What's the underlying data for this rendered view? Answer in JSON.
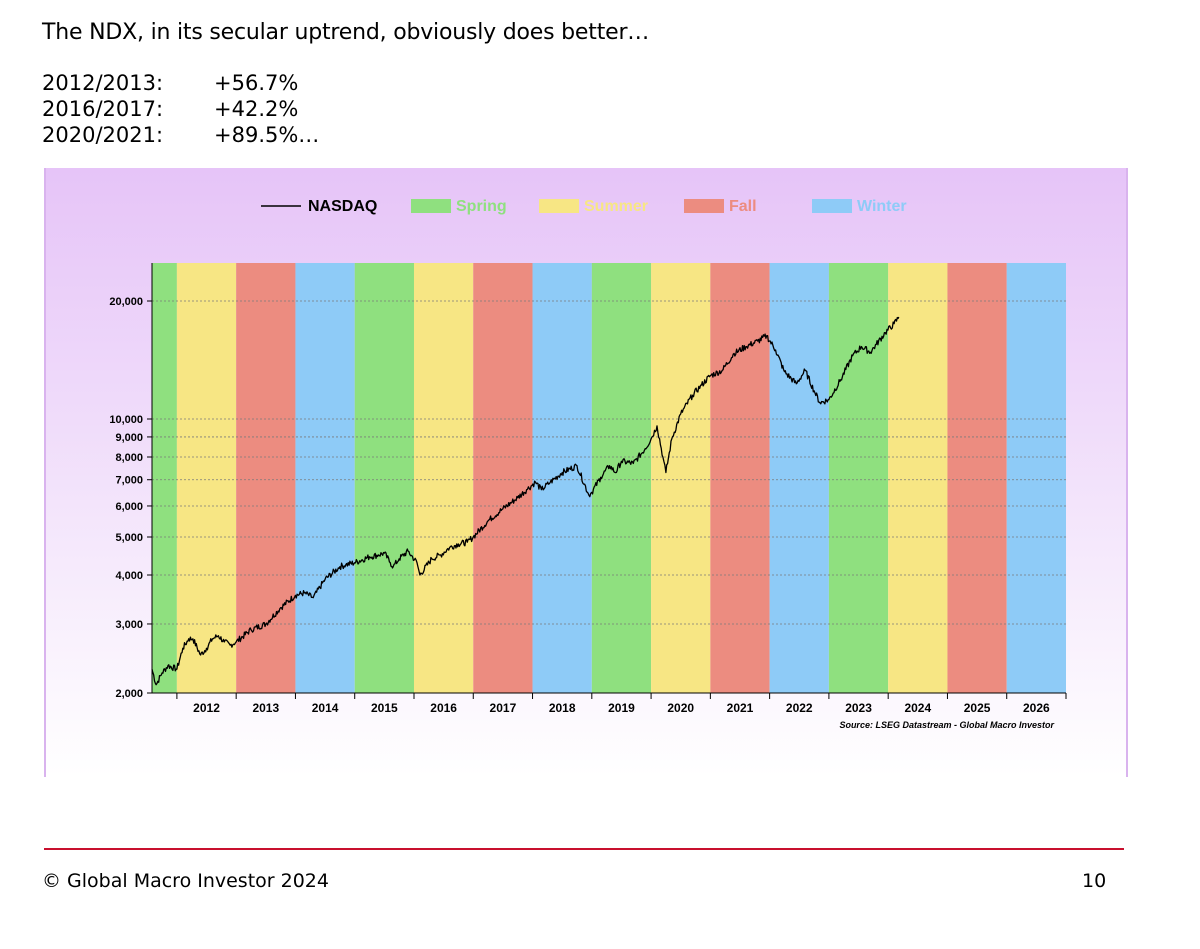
{
  "slide": {
    "headline": "The NDX, in its secular uptrend, obviously does better…",
    "stats": [
      {
        "period": "2012/2013:",
        "value": "+56.7%"
      },
      {
        "period": "2016/2017:",
        "value": "+42.2%"
      },
      {
        "period": "2020/2021:",
        "value": "+89.5%…"
      }
    ],
    "copyright": "© Global Macro Investor 2024",
    "page_number": "10",
    "colors": {
      "accent_rule": "#c8102e",
      "panel_top": "#e6c4f8"
    }
  },
  "chart_data": {
    "type": "line",
    "title": "",
    "xlabel": "",
    "ylabel": "",
    "y_scale": "log",
    "ylim": [
      2000,
      25000
    ],
    "xlim": [
      2011.58,
      2027.0
    ],
    "y_ticks": [
      2000,
      3000,
      4000,
      5000,
      6000,
      7000,
      8000,
      9000,
      10000,
      20000
    ],
    "y_tick_labels": [
      "2,000",
      "3,000",
      "4,000",
      "5,000",
      "6,000",
      "7,000",
      "8,000",
      "9,000",
      "10,000",
      "20,000"
    ],
    "x_tick_labels": [
      "2012",
      "2013",
      "2014",
      "2015",
      "2016",
      "2017",
      "2018",
      "2019",
      "2020",
      "2021",
      "2022",
      "2023",
      "2024",
      "2025",
      "2026"
    ],
    "grid": "horizontal dotted",
    "legend_position": "top-center",
    "legend": [
      {
        "label": "NASDAQ",
        "kind": "line",
        "color": "#000000"
      },
      {
        "label": "Spring",
        "kind": "box",
        "color": "#8fe07f"
      },
      {
        "label": "Summer",
        "kind": "box",
        "color": "#f7e684"
      },
      {
        "label": "Fall",
        "kind": "box",
        "color": "#ec8c80"
      },
      {
        "label": "Winter",
        "kind": "box",
        "color": "#8ecbf7"
      }
    ],
    "season_colors": {
      "Spring": "#8fe07f",
      "Summer": "#f7e684",
      "Fall": "#ec8c80",
      "Winter": "#8ecbf7"
    },
    "season_bands": [
      {
        "start": 2011.58,
        "end": 2012.0,
        "season": "Spring"
      },
      {
        "start": 2012.0,
        "end": 2013.0,
        "season": "Summer"
      },
      {
        "start": 2013.0,
        "end": 2014.0,
        "season": "Fall"
      },
      {
        "start": 2014.0,
        "end": 2015.0,
        "season": "Winter"
      },
      {
        "start": 2015.0,
        "end": 2016.0,
        "season": "Spring"
      },
      {
        "start": 2016.0,
        "end": 2017.0,
        "season": "Summer"
      },
      {
        "start": 2017.0,
        "end": 2018.0,
        "season": "Fall"
      },
      {
        "start": 2018.0,
        "end": 2019.0,
        "season": "Winter"
      },
      {
        "start": 2019.0,
        "end": 2020.0,
        "season": "Spring"
      },
      {
        "start": 2020.0,
        "end": 2021.0,
        "season": "Summer"
      },
      {
        "start": 2021.0,
        "end": 2022.0,
        "season": "Fall"
      },
      {
        "start": 2022.0,
        "end": 2023.0,
        "season": "Winter"
      },
      {
        "start": 2023.0,
        "end": 2024.0,
        "season": "Spring"
      },
      {
        "start": 2024.0,
        "end": 2025.0,
        "season": "Summer"
      },
      {
        "start": 2025.0,
        "end": 2026.0,
        "season": "Fall"
      },
      {
        "start": 2026.0,
        "end": 2027.0,
        "season": "Winter"
      }
    ],
    "series": [
      {
        "name": "NASDAQ",
        "color": "#000000",
        "x": [
          2011.58,
          2011.65,
          2011.75,
          2011.85,
          2012.0,
          2012.1,
          2012.2,
          2012.27,
          2012.4,
          2012.5,
          2012.6,
          2012.7,
          2012.8,
          2012.9,
          2013.0,
          2013.25,
          2013.5,
          2013.75,
          2014.0,
          2014.15,
          2014.3,
          2014.5,
          2014.75,
          2014.85,
          2015.0,
          2015.25,
          2015.4,
          2015.5,
          2015.6,
          2015.65,
          2015.75,
          2015.9,
          2016.05,
          2016.1,
          2016.3,
          2016.45,
          2016.6,
          2016.75,
          2016.9,
          2017.0,
          2017.25,
          2017.5,
          2017.75,
          2017.9,
          2018.05,
          2018.15,
          2018.3,
          2018.5,
          2018.75,
          2018.95,
          2019.0,
          2019.15,
          2019.3,
          2019.4,
          2019.5,
          2019.7,
          2019.9,
          2020.0,
          2020.1,
          2020.2,
          2020.25,
          2020.35,
          2020.5,
          2020.7,
          2020.85,
          2021.0,
          2021.2,
          2021.4,
          2021.6,
          2021.8,
          2021.95,
          2022.1,
          2022.25,
          2022.45,
          2022.6,
          2022.75,
          2022.85,
          2023.0,
          2023.2,
          2023.4,
          2023.55,
          2023.7,
          2023.8,
          2023.95,
          2024.1,
          2024.18
        ],
        "values": [
          2300,
          2100,
          2250,
          2350,
          2300,
          2600,
          2750,
          2750,
          2500,
          2600,
          2750,
          2800,
          2700,
          2650,
          2700,
          2900,
          3000,
          3300,
          3550,
          3600,
          3500,
          3900,
          4200,
          4250,
          4300,
          4450,
          4500,
          4550,
          4300,
          4200,
          4400,
          4600,
          4300,
          4000,
          4400,
          4500,
          4700,
          4800,
          4850,
          5000,
          5500,
          5900,
          6300,
          6600,
          6900,
          6600,
          6900,
          7300,
          7600,
          6400,
          6500,
          7100,
          7600,
          7300,
          7800,
          7700,
          8400,
          8900,
          9600,
          8000,
          7300,
          8900,
          10300,
          11500,
          12200,
          12900,
          13300,
          14700,
          15300,
          15800,
          16300,
          15000,
          13200,
          12300,
          13300,
          11800,
          11000,
          11200,
          12600,
          14500,
          15300,
          14800,
          15500,
          16600,
          17500,
          18200
        ]
      }
    ]
  }
}
